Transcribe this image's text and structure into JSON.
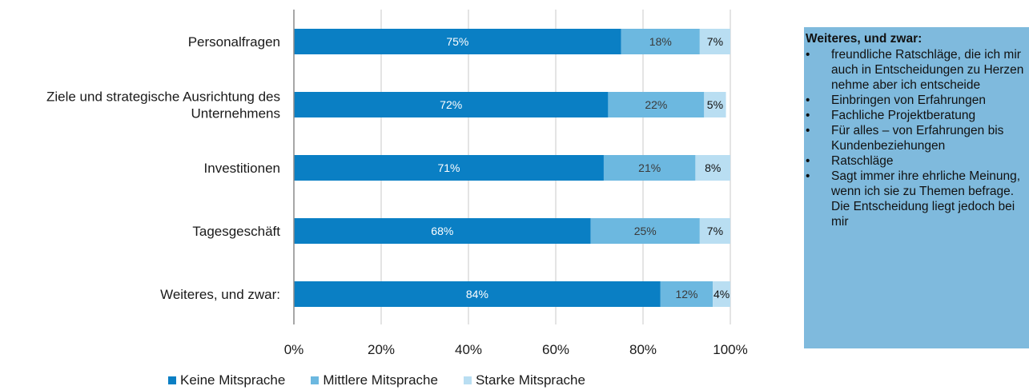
{
  "chart_data": {
    "type": "bar",
    "orientation": "horizontal",
    "stacked": true,
    "categories": [
      "Personalfragen",
      "Ziele und strategische Ausrichtung des Unternehmens",
      "Investitionen",
      "Tagesgeschäft",
      "Weiteres, und zwar:"
    ],
    "category_lines": [
      [
        "Personalfragen"
      ],
      [
        "Ziele und strategische Ausrichtung des",
        "Unternehmens"
      ],
      [
        "Investitionen"
      ],
      [
        "Tagesgeschäft"
      ],
      [
        "Weiteres, und zwar:"
      ]
    ],
    "series": [
      {
        "name": "Keine Mitsprache",
        "values": [
          75,
          72,
          71,
          68,
          84
        ],
        "labels": [
          "75%",
          "72%",
          "71%",
          "68%",
          "84%"
        ],
        "color": "#0a7fc4",
        "label_color": "#ffffff"
      },
      {
        "name": "Mittlere Mitsprache",
        "values": [
          18,
          22,
          21,
          25,
          12
        ],
        "labels": [
          "18%",
          "22%",
          "21%",
          "25%",
          "12%"
        ],
        "color": "#6cb8e0",
        "label_color": "#3a3a3a"
      },
      {
        "name": "Starke Mitsprache",
        "values": [
          7,
          5,
          8,
          7,
          4
        ],
        "labels": [
          "7%",
          "5%",
          "8%",
          "7%",
          "4%"
        ],
        "color": "#b9def2",
        "label_color": "#111111"
      }
    ],
    "xlim": [
      0,
      100
    ],
    "xticks": [
      0,
      20,
      40,
      60,
      80,
      100
    ],
    "xtick_labels": [
      "0%",
      "20%",
      "40%",
      "60%",
      "80%",
      "100%"
    ],
    "grid": true,
    "legend_position": "bottom"
  },
  "note": {
    "title": "Weiteres, und zwar:",
    "bullet": "•",
    "items": [
      "freundliche Ratschläge, die ich mir auch in Entscheidungen zu Herzen nehme aber ich entscheide",
      "Einbringen von Erfahrungen",
      "Fachliche Projektberatung",
      "Für alles – von Erfahrungen bis Kundenbeziehungen",
      "Ratschläge",
      "Sagt immer ihre ehrliche Meinung, wenn ich sie zu Themen befrage. Die Entscheidung liegt jedoch bei mir"
    ],
    "background": "#7fbadd"
  }
}
